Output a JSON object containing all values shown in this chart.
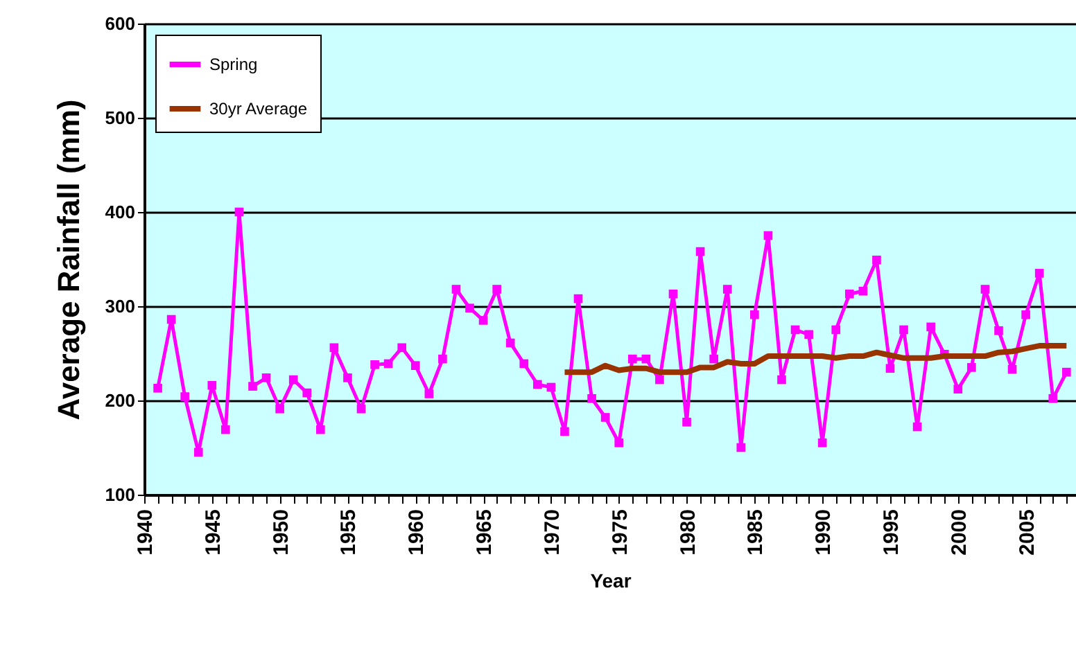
{
  "chart_data": {
    "type": "line",
    "xlabel": "Year",
    "ylabel": "Average Rainfall (mm)",
    "xlim": [
      1940,
      2008.7
    ],
    "xticks": [
      1940,
      {
        "value": 1941,
        "label": null
      },
      {
        "value": 1942,
        "label": null
      },
      {
        "value": 1943,
        "label": null
      },
      {
        "value": 1944,
        "label": null
      },
      1945,
      {
        "value": 1946,
        "label": null
      },
      {
        "value": 1947,
        "label": null
      },
      {
        "value": 1948,
        "label": null
      },
      {
        "value": 1949,
        "label": null
      },
      1950,
      {
        "value": 1951,
        "label": null
      },
      {
        "value": 1952,
        "label": null
      },
      {
        "value": 1953,
        "label": null
      },
      {
        "value": 1954,
        "label": null
      },
      1955,
      {
        "value": 1956,
        "label": null
      },
      {
        "value": 1957,
        "label": null
      },
      {
        "value": 1958,
        "label": null
      },
      {
        "value": 1959,
        "label": null
      },
      1960,
      {
        "value": 1961,
        "label": null
      },
      {
        "value": 1962,
        "label": null
      },
      {
        "value": 1963,
        "label": null
      },
      {
        "value": 1964,
        "label": null
      },
      1965,
      {
        "value": 1966,
        "label": null
      },
      {
        "value": 1967,
        "label": null
      },
      {
        "value": 1968,
        "label": null
      },
      {
        "value": 1969,
        "label": null
      },
      1970,
      {
        "value": 1971,
        "label": null
      },
      {
        "value": 1972,
        "label": null
      },
      {
        "value": 1973,
        "label": null
      },
      {
        "value": 1974,
        "label": null
      },
      1975,
      {
        "value": 1976,
        "label": null
      },
      {
        "value": 1977,
        "label": null
      },
      {
        "value": 1978,
        "label": null
      },
      {
        "value": 1979,
        "label": null
      },
      1980,
      {
        "value": 1981,
        "label": null
      },
      {
        "value": 1982,
        "label": null
      },
      {
        "value": 1983,
        "label": null
      },
      {
        "value": 1984,
        "label": null
      },
      1985,
      {
        "value": 1986,
        "label": null
      },
      {
        "value": 1987,
        "label": null
      },
      {
        "value": 1988,
        "label": null
      },
      {
        "value": 1989,
        "label": null
      },
      1990,
      {
        "value": 1991,
        "label": null
      },
      {
        "value": 1992,
        "label": null
      },
      {
        "value": 1993,
        "label": null
      },
      {
        "value": 1994,
        "label": null
      },
      1995,
      {
        "value": 1996,
        "label": null
      },
      {
        "value": 1997,
        "label": null
      },
      {
        "value": 1998,
        "label": null
      },
      {
        "value": 1999,
        "label": null
      },
      2000,
      {
        "value": 2001,
        "label": null
      },
      {
        "value": 2002,
        "label": null
      },
      {
        "value": 2003,
        "label": null
      },
      {
        "value": 2004,
        "label": null
      },
      2005,
      {
        "value": 2006,
        "label": null
      },
      {
        "value": 2007,
        "label": null
      },
      {
        "value": 2008,
        "label": null
      }
    ],
    "ylim": [
      100,
      600
    ],
    "yticks": [
      100,
      200,
      300,
      400,
      500,
      600
    ],
    "grid": "y",
    "legend": "top left",
    "series": [
      {
        "name": "Spring",
        "color": "#ff00ff",
        "marker": "square",
        "x": [
          1941,
          1942,
          1943,
          1944,
          1945,
          1946,
          1947,
          1948,
          1949,
          1950,
          1951,
          1952,
          1953,
          1954,
          1955,
          1956,
          1957,
          1958,
          1959,
          1960,
          1961,
          1962,
          1963,
          1964,
          1965,
          1966,
          1967,
          1968,
          1969,
          1970,
          1971,
          1972,
          1973,
          1974,
          1975,
          1976,
          1977,
          1978,
          1979,
          1980,
          1981,
          1982,
          1983,
          1984,
          1985,
          1986,
          1987,
          1988,
          1989,
          1990,
          1991,
          1992,
          1993,
          1994,
          1995,
          1996,
          1997,
          1998,
          1999,
          2000,
          2001,
          2002,
          2003,
          2004,
          2005,
          2006,
          2007,
          2008
        ],
        "values": [
          213,
          286,
          204,
          145,
          216,
          169,
          400,
          215,
          224,
          191,
          222,
          208,
          169,
          256,
          224,
          191,
          238,
          239,
          256,
          237,
          207,
          244,
          318,
          298,
          285,
          318,
          261,
          239,
          217,
          214,
          167,
          308,
          202,
          182,
          155,
          244,
          244,
          222,
          313,
          177,
          358,
          244,
          318,
          150,
          291,
          375,
          222,
          275,
          270,
          155,
          275,
          313,
          316,
          349,
          234,
          275,
          172,
          278,
          249,
          212,
          235,
          318,
          274,
          233,
          291,
          335,
          202,
          230
        ]
      },
      {
        "name": "30yr Average",
        "color": "#993300",
        "marker": "none",
        "x": [
          1971,
          1972,
          1973,
          1974,
          1975,
          1976,
          1977,
          1978,
          1979,
          1980,
          1981,
          1982,
          1983,
          1984,
          1985,
          1986,
          1987,
          1988,
          1989,
          1990,
          1991,
          1992,
          1993,
          1994,
          1995,
          1996,
          1997,
          1998,
          1999,
          2000,
          2001,
          2002,
          2003,
          2004,
          2005,
          2006,
          2007,
          2008
        ],
        "values": [
          230,
          230,
          230,
          237,
          232,
          234,
          234,
          230,
          230,
          230,
          235,
          235,
          241,
          239,
          239,
          247,
          247,
          247,
          247,
          247,
          245,
          247,
          247,
          251,
          248,
          245,
          245,
          245,
          247,
          247,
          247,
          247,
          251,
          252,
          255,
          258,
          258,
          258
        ]
      }
    ]
  }
}
